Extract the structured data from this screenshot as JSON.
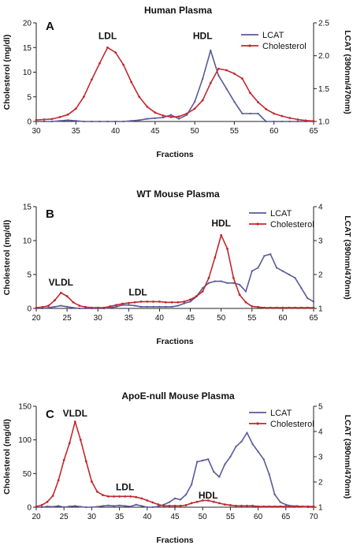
{
  "chart_data": [
    {
      "type": "line",
      "letter": "A",
      "title": "Human Plasma",
      "xlabel": "Fractions",
      "ylabel_left": "Cholesterol (mg/dl)",
      "ylabel_right": "LCAT (390nm/470nm)",
      "xlim": [
        30,
        65
      ],
      "xticks": [
        30,
        35,
        40,
        45,
        50,
        55,
        60,
        65
      ],
      "ylim_left": [
        0,
        20
      ],
      "yticks_left": [
        0,
        5,
        10,
        15,
        20
      ],
      "ylim_right": [
        1.0,
        2.5
      ],
      "yticks_right": [
        "1.0",
        "1.5",
        "2.0",
        "2.5"
      ],
      "legend": "top-right",
      "annotations": [
        {
          "text": "LDL",
          "x": 39,
          "y": 16.7
        },
        {
          "text": "HDL",
          "x": 51,
          "y": 16.7
        }
      ],
      "series": [
        {
          "name": "LCAT",
          "axis": "right",
          "color": "#5a5a9a",
          "x": [
            30,
            31,
            32,
            33,
            34,
            35,
            36,
            37,
            38,
            39,
            40,
            41,
            42,
            43,
            44,
            45,
            46,
            47,
            48,
            49,
            50,
            51,
            52,
            53,
            54,
            55,
            56,
            57,
            58,
            59,
            60,
            61,
            62,
            63,
            64,
            65
          ],
          "y": [
            1.0,
            1.0,
            1.0,
            1.01,
            1.02,
            1.01,
            1.0,
            1.0,
            1.0,
            1.0,
            1.0,
            1.0,
            1.01,
            1.02,
            1.04,
            1.05,
            1.06,
            1.1,
            1.04,
            1.1,
            1.3,
            1.65,
            2.08,
            1.7,
            1.5,
            1.3,
            1.12,
            1.12,
            1.12,
            1.0,
            1.0,
            1.0,
            1.0,
            1.0,
            1.0,
            1.0
          ]
        },
        {
          "name": "Cholesterol",
          "axis": "left",
          "color": "#c0282e",
          "x": [
            30,
            31,
            32,
            33,
            34,
            35,
            36,
            37,
            38,
            39,
            40,
            41,
            42,
            43,
            44,
            45,
            46,
            47,
            48,
            49,
            50,
            51,
            52,
            53,
            54,
            55,
            56,
            57,
            58,
            59,
            60,
            61,
            62,
            63,
            64,
            65
          ],
          "y": [
            0.3,
            0.4,
            0.5,
            0.9,
            1.4,
            2.6,
            5,
            8.5,
            11.8,
            15,
            14,
            11.5,
            8,
            5,
            3,
            1.8,
            1.2,
            0.9,
            1,
            1.6,
            2.6,
            4.3,
            7.8,
            10.7,
            10.4,
            9.7,
            8.7,
            5.8,
            3.9,
            2.5,
            1.6,
            1.1,
            0.7,
            0.4,
            0.2,
            0.1
          ]
        }
      ]
    },
    {
      "type": "line",
      "letter": "B",
      "title": "WT Mouse Plasma",
      "xlabel": "Fractions",
      "ylabel_left": "Cholesterol (mg/dl)",
      "ylabel_right": "LCAT (390nm/470nm)",
      "xlim": [
        20,
        65
      ],
      "xticks": [
        20,
        25,
        30,
        35,
        40,
        45,
        50,
        55,
        60,
        65
      ],
      "ylim_left": [
        0,
        15
      ],
      "yticks_left": [
        0,
        5,
        10,
        15
      ],
      "ylim_right": [
        1,
        4
      ],
      "yticks_right": [
        "1",
        "2",
        "3",
        "4"
      ],
      "legend": "top-right",
      "annotations": [
        {
          "text": "VLDL",
          "x": 24,
          "y": 3.4
        },
        {
          "text": "LDL",
          "x": 36.5,
          "y": 1.9
        },
        {
          "text": "HDL",
          "x": 50,
          "y": 12.1
        }
      ],
      "series": [
        {
          "name": "LCAT",
          "axis": "right",
          "color": "#5a5a9a",
          "x": [
            20,
            21,
            22,
            23,
            24,
            25,
            26,
            27,
            28,
            29,
            30,
            31,
            32,
            33,
            34,
            35,
            36,
            37,
            38,
            39,
            40,
            41,
            42,
            43,
            44,
            45,
            46,
            47,
            48,
            49,
            50,
            51,
            52,
            53,
            54,
            55,
            56,
            57,
            58,
            59,
            60,
            61,
            62,
            63,
            64,
            65
          ],
          "y": [
            1.0,
            1.0,
            1.02,
            1.05,
            1.08,
            1.05,
            1.02,
            1.0,
            1.0,
            1.0,
            1.0,
            1.0,
            1.02,
            1.05,
            1.1,
            1.1,
            1.08,
            1.05,
            1.05,
            1.05,
            1.05,
            1.05,
            1.05,
            1.08,
            1.15,
            1.2,
            1.35,
            1.6,
            1.75,
            1.8,
            1.8,
            1.75,
            1.75,
            1.7,
            1.5,
            2.1,
            2.2,
            2.55,
            2.6,
            2.2,
            2.1,
            2.0,
            1.9,
            1.6,
            1.3,
            1.2
          ]
        },
        {
          "name": "Cholesterol",
          "axis": "left",
          "color": "#c0282e",
          "x": [
            20,
            21,
            22,
            23,
            24,
            25,
            26,
            27,
            28,
            29,
            30,
            31,
            32,
            33,
            34,
            35,
            36,
            37,
            38,
            39,
            40,
            41,
            42,
            43,
            44,
            45,
            46,
            47,
            48,
            49,
            50,
            51,
            52,
            53,
            54,
            55,
            56,
            57,
            58,
            59,
            60,
            61,
            62,
            63,
            64,
            65
          ],
          "y": [
            0.1,
            0.2,
            0.4,
            1.2,
            2.3,
            1.8,
            0.9,
            0.4,
            0.2,
            0.1,
            0.1,
            0.1,
            0.3,
            0.5,
            0.7,
            0.8,
            0.9,
            1.0,
            1.0,
            1.0,
            1.0,
            0.9,
            0.9,
            0.9,
            1.0,
            1.3,
            1.8,
            2.5,
            4.5,
            7.5,
            10.8,
            8.8,
            4.5,
            2.0,
            0.9,
            0.3,
            0.2,
            0.1,
            0.1,
            0.1,
            0.1,
            0.1,
            0.1,
            0.1,
            0.1,
            0.1
          ]
        }
      ]
    },
    {
      "type": "line",
      "letter": "C",
      "title": "ApoE-null Mouse Plasma",
      "xlabel": "Fractions",
      "ylabel_left": "Cholesterol (mg/dl)",
      "ylabel_right": "LCAT (390nm/470nm)",
      "xlim": [
        20,
        70
      ],
      "xticks": [
        20,
        25,
        30,
        35,
        40,
        45,
        50,
        55,
        60,
        65,
        70
      ],
      "ylim_left": [
        0,
        150
      ],
      "yticks_left": [
        0,
        50,
        100,
        150
      ],
      "ylim_right": [
        1,
        5
      ],
      "yticks_right": [
        "1",
        "2",
        "3",
        "4",
        "5"
      ],
      "legend": "top-right",
      "annotations": [
        {
          "text": "VLDL",
          "x": 27,
          "y": 135
        },
        {
          "text": "LDL",
          "x": 36,
          "y": 25
        },
        {
          "text": "HDL",
          "x": 51,
          "y": 13
        }
      ],
      "series": [
        {
          "name": "LCAT",
          "axis": "right",
          "color": "#5a5a9a",
          "x": [
            20,
            21,
            22,
            23,
            24,
            25,
            26,
            27,
            28,
            29,
            30,
            31,
            32,
            33,
            34,
            35,
            36,
            37,
            38,
            39,
            40,
            41,
            42,
            43,
            44,
            45,
            46,
            47,
            48,
            49,
            50,
            51,
            52,
            53,
            54,
            55,
            56,
            57,
            58,
            59,
            60,
            61,
            62,
            63,
            64,
            65,
            66,
            67,
            68,
            69,
            70
          ],
          "y": [
            1.0,
            1.0,
            1.03,
            1.02,
            1.05,
            1.0,
            1.03,
            1.05,
            1.02,
            1.0,
            1.0,
            1.02,
            1.05,
            1.07,
            1.05,
            1.07,
            1.05,
            1.03,
            1.1,
            1.05,
            1.0,
            1.0,
            1.03,
            1.1,
            1.2,
            1.35,
            1.3,
            1.5,
            1.9,
            2.8,
            2.85,
            2.9,
            2.4,
            2.2,
            2.7,
            3.0,
            3.4,
            3.6,
            3.95,
            3.5,
            3.2,
            2.9,
            2.3,
            1.5,
            1.2,
            1.1,
            1.05,
            1.05,
            1.02,
            1.0,
            1.0
          ]
        },
        {
          "name": "Cholesterol",
          "axis": "left",
          "color": "#c0282e",
          "x": [
            20,
            21,
            22,
            23,
            24,
            25,
            26,
            27,
            28,
            29,
            30,
            31,
            32,
            33,
            34,
            35,
            36,
            37,
            38,
            39,
            40,
            41,
            42,
            43,
            44,
            45,
            46,
            47,
            48,
            49,
            50,
            51,
            52,
            53,
            54,
            55,
            56,
            57,
            58,
            59,
            60,
            61,
            62,
            63,
            64,
            65,
            66,
            67,
            68,
            69,
            70
          ],
          "y": [
            1,
            3,
            8,
            17,
            40,
            70,
            95,
            127,
            100,
            68,
            38,
            23,
            18,
            16,
            16,
            16,
            16,
            16,
            15,
            13,
            10,
            7,
            4,
            2,
            2,
            2,
            2,
            3,
            6,
            8,
            10,
            10,
            8,
            6,
            4,
            3,
            2,
            2,
            2,
            2,
            1,
            1,
            1,
            1,
            1,
            1,
            1,
            1,
            1,
            1,
            1
          ]
        }
      ]
    }
  ]
}
